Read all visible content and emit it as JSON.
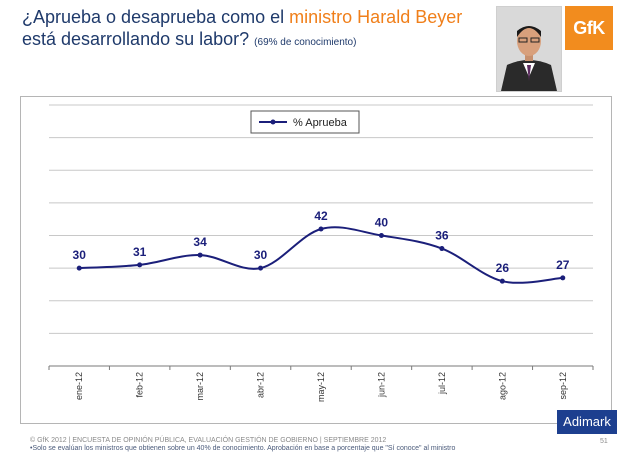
{
  "header": {
    "title_part1": "¿Aprueba o desaprueba como el ",
    "title_highlight": "ministro Harald Beyer",
    "title_part2": "está desarrollando su labor?",
    "title_note": "(69% de conocimiento)"
  },
  "logos": {
    "gfk": "GfK",
    "adimark": "Adimark"
  },
  "footer": {
    "line1": "© GfK 2012 | ENCUESTA DE OPINIÓN PÚBLICA, EVALUACIÓN GESTIÓN DE GOBIERNO | SEPTIEMBRE 2012",
    "line2": "•Solo se evalúan los ministros que obtienen sobre un 40% de conocimiento. Aprobación en base a porcentaje que \"Sí conoce\" al ministro",
    "page_number": "51"
  },
  "colors": {
    "title": "#1f3a6b",
    "highlight": "#f07f1a",
    "series": "#1b1f7a",
    "gfk": "#f28c1e",
    "adimark": "#1d3f8f"
  },
  "chart_data": {
    "type": "line",
    "title": "",
    "xlabel": "",
    "ylabel": "",
    "categories": [
      "ene-12",
      "feb-12",
      "mar-12",
      "abr-12",
      "may-12",
      "jun-12",
      "jul-12",
      "ago-12",
      "sep-12"
    ],
    "series": [
      {
        "name": "% Aprueba",
        "values": [
          30,
          31,
          34,
          30,
          42,
          40,
          36,
          26,
          27
        ]
      }
    ],
    "ylim": [
      0,
      80
    ],
    "grid": true,
    "legend": "top-left",
    "data_labels": true,
    "smooth": true
  }
}
